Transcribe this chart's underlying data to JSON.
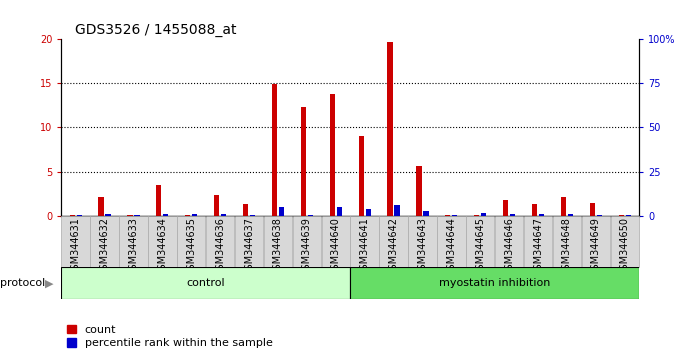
{
  "title": "GDS3526 / 1455088_at",
  "samples": [
    "GSM344631",
    "GSM344632",
    "GSM344633",
    "GSM344634",
    "GSM344635",
    "GSM344636",
    "GSM344637",
    "GSM344638",
    "GSM344639",
    "GSM344640",
    "GSM344641",
    "GSM344642",
    "GSM344643",
    "GSM344644",
    "GSM344645",
    "GSM344646",
    "GSM344647",
    "GSM344648",
    "GSM344649",
    "GSM344650"
  ],
  "count": [
    0.1,
    2.1,
    0.1,
    3.5,
    0.1,
    2.4,
    1.3,
    14.9,
    12.3,
    13.8,
    9.0,
    19.7,
    5.6,
    0.1,
    0.1,
    1.8,
    1.3,
    2.1,
    1.5,
    0.1
  ],
  "percentile": [
    0.5,
    1.0,
    0.4,
    1.1,
    0.9,
    1.3,
    0.7,
    5.0,
    0.5,
    5.0,
    4.2,
    6.2,
    2.8,
    0.5,
    1.8,
    1.0,
    1.2,
    1.0,
    0.5,
    0.4
  ],
  "ylim_left": [
    0,
    20
  ],
  "ylim_right": [
    0,
    100
  ],
  "yticks_left": [
    0,
    5,
    10,
    15,
    20
  ],
  "ytick_labels_left": [
    "0",
    "5",
    "10",
    "15",
    "20"
  ],
  "yticks_right": [
    0,
    25,
    50,
    75,
    100
  ],
  "ytick_labels_right": [
    "0",
    "25",
    "50",
    "75",
    "100%"
  ],
  "bar_color_count": "#cc0000",
  "bar_color_pct": "#0000cc",
  "bar_width": 0.35,
  "plot_bg": "#ffffff",
  "xticklabel_bg": "#d8d8d8",
  "control_color": "#ccffcc",
  "inhibition_color": "#66dd66",
  "font_size_title": 10,
  "font_size_ticks": 7,
  "font_size_labels": 8,
  "font_size_xticklabels": 7,
  "legend_count_label": "count",
  "legend_pct_label": "percentile rank within the sample",
  "protocol_label": "protocol",
  "control_label": "control",
  "inhibition_label": "myostatin inhibition",
  "n_control": 10,
  "n_inhibition": 10
}
